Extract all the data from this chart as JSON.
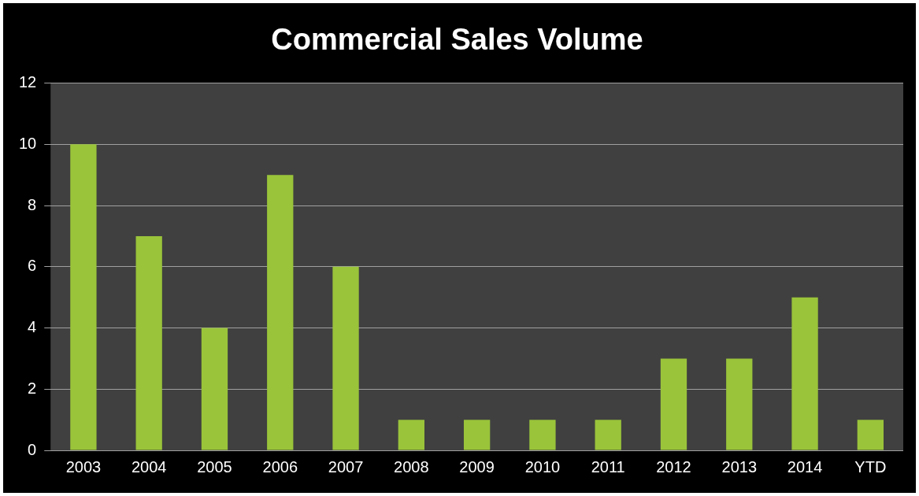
{
  "chart_data": {
    "type": "bar",
    "title": "Commercial Sales Volume",
    "categories": [
      "2003",
      "2004",
      "2005",
      "2006",
      "2007",
      "2008",
      "2009",
      "2010",
      "2011",
      "2012",
      "2013",
      "2014",
      "YTD"
    ],
    "values": [
      10,
      7,
      4,
      9,
      6,
      1,
      1,
      1,
      1,
      3,
      3,
      5,
      1
    ],
    "color": "#9ac43a",
    "ylim": [
      0,
      12
    ],
    "yticks": [
      0,
      2,
      4,
      6,
      8,
      10,
      12
    ],
    "grid": "y"
  }
}
